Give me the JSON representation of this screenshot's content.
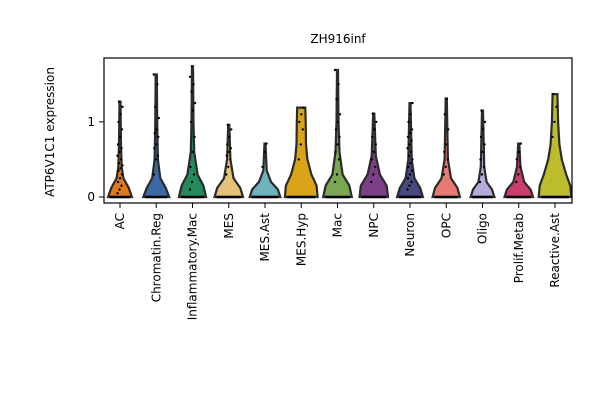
{
  "chart_data": {
    "type": "violin",
    "title": "ZH916inf",
    "ylabel": "ATP6V1C1 expression",
    "xlabel": "",
    "ylim": [
      -0.08,
      1.85
    ],
    "yticks": [
      0,
      1
    ],
    "categories": [
      "AC",
      "Chromatin.Reg",
      "Inflammatory.Mac",
      "MES",
      "MES.Ast",
      "MES.Hyp",
      "Mac",
      "NPC",
      "Neuron",
      "OPC",
      "Oligo",
      "Prolif.Metab",
      "Reactive.Ast"
    ],
    "colors": [
      "#e0791b",
      "#3d68a6",
      "#248a5e",
      "#e6c27a",
      "#6db4bf",
      "#d9a418",
      "#7ba653",
      "#7b3f86",
      "#48497f",
      "#e87a73",
      "#b6aad8",
      "#c93e6b",
      "#bcbc2d"
    ],
    "max_values": [
      1.27,
      1.63,
      1.74,
      0.96,
      0.71,
      1.19,
      1.69,
      1.11,
      1.25,
      1.31,
      1.15,
      0.71,
      1.37
    ],
    "shapes": [
      [
        [
          0,
          0.35
        ],
        [
          0.12,
          0.26
        ],
        [
          0.25,
          0.1
        ],
        [
          0.4,
          0.05
        ],
        [
          0.7,
          0.03
        ],
        [
          1.27,
          0.015
        ]
      ],
      [
        [
          0,
          0.38
        ],
        [
          0.12,
          0.28
        ],
        [
          0.25,
          0.12
        ],
        [
          0.5,
          0.05
        ],
        [
          0.9,
          0.03
        ],
        [
          1.63,
          0.015
        ]
      ],
      [
        [
          0,
          0.4
        ],
        [
          0.15,
          0.32
        ],
        [
          0.3,
          0.15
        ],
        [
          0.6,
          0.05
        ],
        [
          1.0,
          0.03
        ],
        [
          1.74,
          0.015
        ]
      ],
      [
        [
          0,
          0.42
        ],
        [
          0.12,
          0.34
        ],
        [
          0.25,
          0.14
        ],
        [
          0.5,
          0.05
        ],
        [
          0.96,
          0.015
        ]
      ],
      [
        [
          0,
          0.45
        ],
        [
          0.1,
          0.38
        ],
        [
          0.2,
          0.18
        ],
        [
          0.35,
          0.05
        ],
        [
          0.71,
          0.015
        ]
      ],
      [
        [
          0,
          0.48
        ],
        [
          0.15,
          0.45
        ],
        [
          0.3,
          0.3
        ],
        [
          0.5,
          0.18
        ],
        [
          0.7,
          0.14
        ],
        [
          1.0,
          0.13
        ],
        [
          1.19,
          0.12
        ]
      ],
      [
        [
          0,
          0.42
        ],
        [
          0.15,
          0.35
        ],
        [
          0.3,
          0.15
        ],
        [
          0.6,
          0.06
        ],
        [
          1.0,
          0.03
        ],
        [
          1.69,
          0.015
        ]
      ],
      [
        [
          0,
          0.42
        ],
        [
          0.15,
          0.38
        ],
        [
          0.3,
          0.18
        ],
        [
          0.55,
          0.06
        ],
        [
          1.11,
          0.015
        ]
      ],
      [
        [
          0,
          0.38
        ],
        [
          0.12,
          0.3
        ],
        [
          0.25,
          0.13
        ],
        [
          0.5,
          0.05
        ],
        [
          1.25,
          0.015
        ]
      ],
      [
        [
          0,
          0.4
        ],
        [
          0.12,
          0.33
        ],
        [
          0.25,
          0.14
        ],
        [
          0.5,
          0.05
        ],
        [
          1.31,
          0.015
        ]
      ],
      [
        [
          0,
          0.35
        ],
        [
          0.1,
          0.28
        ],
        [
          0.2,
          0.12
        ],
        [
          0.4,
          0.05
        ],
        [
          1.15,
          0.015
        ]
      ],
      [
        [
          0,
          0.42
        ],
        [
          0.1,
          0.35
        ],
        [
          0.2,
          0.16
        ],
        [
          0.4,
          0.05
        ],
        [
          0.71,
          0.015
        ]
      ],
      [
        [
          0,
          0.48
        ],
        [
          0.15,
          0.45
        ],
        [
          0.3,
          0.33
        ],
        [
          0.5,
          0.2
        ],
        [
          0.7,
          0.13
        ],
        [
          1.0,
          0.09
        ],
        [
          1.37,
          0.07
        ]
      ]
    ],
    "points": [
      [
        0.05,
        0.1,
        0.15,
        0.2,
        0.25,
        0.3,
        0.35,
        0.38,
        0.42,
        0.45,
        0.5,
        0.55,
        0.6,
        0.65,
        0.7,
        0.8,
        0.9,
        1.0,
        1.1,
        1.2,
        1.27
      ],
      [
        0.3,
        0.5,
        0.55,
        0.65,
        0.7,
        0.8,
        0.85,
        0.9,
        1.05,
        1.2,
        1.5,
        1.63
      ],
      [
        0.1,
        0.2,
        0.3,
        0.4,
        0.6,
        0.8,
        1.0,
        1.15,
        1.25,
        1.4,
        1.5,
        1.6,
        1.74
      ],
      [
        0.3,
        0.4,
        0.5,
        0.55,
        0.6,
        0.65,
        0.7,
        0.8,
        0.9,
        0.96
      ],
      [
        0.4,
        0.6,
        0.71
      ],
      [
        0.5,
        0.7,
        0.9,
        1.0,
        1.1,
        1.19
      ],
      [
        0.2,
        0.3,
        0.5,
        0.6,
        0.7,
        0.8,
        0.9,
        1.0,
        1.1,
        1.3,
        1.5,
        1.69
      ],
      [
        0.2,
        0.3,
        0.4,
        0.5,
        0.6,
        0.7,
        0.8,
        0.9,
        1.0,
        1.11
      ],
      [
        0.1,
        0.15,
        0.2,
        0.25,
        0.3,
        0.35,
        0.4,
        0.45,
        0.5,
        0.55,
        0.6,
        0.65,
        0.7,
        0.75,
        0.8,
        0.85,
        0.9,
        1.0,
        1.1,
        1.25
      ],
      [
        0.3,
        0.4,
        0.5,
        0.6,
        0.7,
        0.9,
        1.1,
        1.31
      ],
      [
        0.2,
        0.3,
        0.4,
        0.5,
        0.6,
        0.7,
        0.8,
        0.9,
        1.0,
        1.15
      ],
      [
        0.2,
        0.3,
        0.4,
        0.5,
        0.6,
        0.71
      ],
      [
        0.8,
        1.0,
        1.2,
        1.37
      ]
    ]
  }
}
